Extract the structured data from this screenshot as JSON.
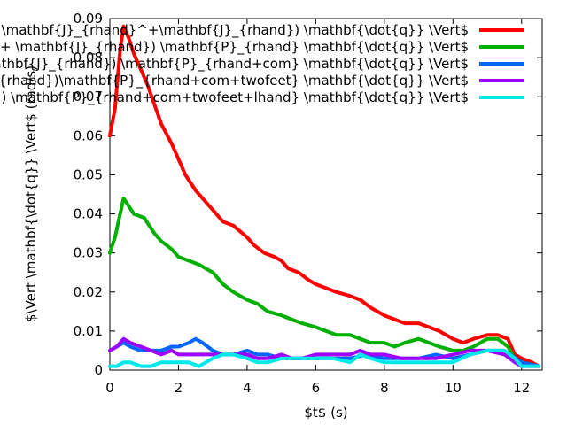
{
  "chart_data": {
    "type": "line",
    "title": "",
    "xlabel": "$t$ (s)",
    "ylabel": "$\\Vert \\mathbf{\\dot{q}} \\Vert$ (rad/s)",
    "xlim": [
      0,
      12.6
    ],
    "ylim": [
      0,
      0.09
    ],
    "xticks": [
      "0",
      "2",
      "4",
      "6",
      "8",
      "10",
      "12"
    ],
    "yticks": [
      "0",
      "0.01",
      "0.02",
      "0.03",
      "0.04",
      "0.05",
      "0.06",
      "0.07",
      "0.08",
      "0.09"
    ],
    "legend_position": "top-right",
    "series": [
      {
        "name": "$\\Vert (\\mathbf{I} - \\mathbf{J}_{rhand}^+\\mathbf{J}_{rhand}) \\mathbf{\\dot{q}} \\Vert$",
        "color": "#ff0000",
        "x": [
          0,
          0.15,
          0.3,
          0.4,
          0.55,
          0.7,
          0.9,
          1.1,
          1.3,
          1.5,
          1.8,
          2.0,
          2.2,
          2.5,
          2.8,
          3.0,
          3.3,
          3.6,
          4.0,
          4.2,
          4.5,
          4.8,
          5.0,
          5.2,
          5.5,
          5.8,
          6.0,
          6.3,
          6.6,
          7.0,
          7.3,
          7.6,
          8.0,
          8.3,
          8.6,
          9.0,
          9.3,
          9.6,
          10.0,
          10.3,
          10.6,
          11.0,
          11.3,
          11.6,
          11.8,
          12.0,
          12.3,
          12.5
        ],
        "values": [
          0.06,
          0.067,
          0.082,
          0.088,
          0.085,
          0.081,
          0.077,
          0.073,
          0.068,
          0.063,
          0.058,
          0.054,
          0.05,
          0.046,
          0.043,
          0.041,
          0.038,
          0.037,
          0.034,
          0.032,
          0.03,
          0.029,
          0.028,
          0.026,
          0.025,
          0.023,
          0.022,
          0.021,
          0.02,
          0.019,
          0.018,
          0.016,
          0.014,
          0.013,
          0.012,
          0.012,
          0.011,
          0.01,
          0.008,
          0.007,
          0.008,
          0.009,
          0.009,
          0.008,
          0.004,
          0.003,
          0.002,
          0.001
        ]
      },
      {
        "name": "$\\Vert (\\mathbf{I} - \\mathbf{J}_{rhand}^+ \\mathbf{J}_{rhand}) \\mathbf{P}_{rhand} \\mathbf{\\dot{q}} \\Vert$",
        "color": "#00b000",
        "x": [
          0,
          0.15,
          0.3,
          0.4,
          0.55,
          0.7,
          1.0,
          1.3,
          1.5,
          1.8,
          2.0,
          2.3,
          2.6,
          3.0,
          3.3,
          3.6,
          4.0,
          4.3,
          4.6,
          5.0,
          5.3,
          5.6,
          6.0,
          6.3,
          6.6,
          7.0,
          7.3,
          7.6,
          8.0,
          8.3,
          8.6,
          9.0,
          9.3,
          9.6,
          10.0,
          10.3,
          10.6,
          11.0,
          11.3,
          11.6,
          11.8,
          12.0,
          12.5
        ],
        "values": [
          0.03,
          0.034,
          0.04,
          0.044,
          0.042,
          0.04,
          0.039,
          0.035,
          0.033,
          0.031,
          0.029,
          0.028,
          0.027,
          0.025,
          0.022,
          0.02,
          0.018,
          0.017,
          0.015,
          0.014,
          0.013,
          0.012,
          0.011,
          0.01,
          0.009,
          0.009,
          0.008,
          0.007,
          0.007,
          0.006,
          0.007,
          0.008,
          0.007,
          0.006,
          0.005,
          0.005,
          0.006,
          0.008,
          0.008,
          0.006,
          0.003,
          0.002,
          0.001
        ]
      },
      {
        "name": "$\\Vert (\\mathbf{I} - \\mathbf{J}_{rhand}^+ \\mathbf{J}_{rhand}) \\mathbf{P}_{rhand+com} \\mathbf{\\dot{q}} \\Vert$",
        "color": "#0066ff",
        "x": [
          0,
          0.2,
          0.4,
          0.6,
          0.9,
          1.2,
          1.5,
          1.8,
          2.0,
          2.3,
          2.5,
          2.7,
          3.0,
          3.3,
          3.6,
          4.0,
          4.3,
          4.6,
          5.0,
          5.3,
          5.6,
          6.0,
          6.5,
          7.0,
          7.5,
          8.0,
          8.5,
          9.0,
          9.5,
          10.0,
          10.5,
          11.0,
          11.5,
          12.0,
          12.5
        ],
        "values": [
          0.005,
          0.006,
          0.007,
          0.006,
          0.005,
          0.005,
          0.005,
          0.006,
          0.006,
          0.007,
          0.008,
          0.007,
          0.005,
          0.004,
          0.004,
          0.005,
          0.004,
          0.004,
          0.003,
          0.003,
          0.003,
          0.003,
          0.003,
          0.003,
          0.004,
          0.003,
          0.003,
          0.003,
          0.004,
          0.003,
          0.004,
          0.005,
          0.005,
          0.002,
          0.001
        ]
      },
      {
        "name": "$\\Vert (\\mathbf{I} - \\mathbf{J}_{rhand}^+ \\mathbf{J}_{rhand})\\mathbf{P}_{rhand+com+twofeet} \\mathbf{\\dot{q}} \\Vert$",
        "color": "#a000ff",
        "x": [
          0,
          0.2,
          0.4,
          0.6,
          0.9,
          1.2,
          1.5,
          1.8,
          2.0,
          2.3,
          2.6,
          3.0,
          3.3,
          3.6,
          4.0,
          4.3,
          4.6,
          5.0,
          5.3,
          5.6,
          6.0,
          6.5,
          7.0,
          7.3,
          7.6,
          8.0,
          8.5,
          9.0,
          9.5,
          10.0,
          10.5,
          11.0,
          11.5,
          11.8,
          12.0,
          12.5
        ],
        "values": [
          0.005,
          0.006,
          0.008,
          0.007,
          0.006,
          0.005,
          0.004,
          0.005,
          0.004,
          0.004,
          0.004,
          0.004,
          0.004,
          0.004,
          0.004,
          0.003,
          0.003,
          0.004,
          0.003,
          0.003,
          0.004,
          0.004,
          0.004,
          0.005,
          0.004,
          0.004,
          0.003,
          0.003,
          0.003,
          0.004,
          0.005,
          0.005,
          0.004,
          0.002,
          0.001,
          0.001
        ]
      },
      {
        "name": "$\\Vert (\\mathbf{I} - \\mathbf{J}_{rhand}^+ \\mathbf{J}_{rhand}) \\mathbf{P}_{rhand+com+twofeet+lhand} \\mathbf{\\dot{q}} \\Vert$",
        "color": "#00e8e8",
        "x": [
          0,
          0.2,
          0.4,
          0.6,
          0.9,
          1.2,
          1.5,
          1.8,
          2.0,
          2.3,
          2.6,
          3.0,
          3.3,
          3.6,
          4.0,
          4.3,
          4.6,
          5.0,
          5.3,
          5.6,
          6.0,
          6.5,
          7.0,
          7.3,
          7.6,
          8.0,
          8.5,
          9.0,
          9.5,
          10.0,
          10.5,
          11.0,
          11.5,
          11.8,
          12.0,
          12.5
        ],
        "values": [
          0.001,
          0.001,
          0.002,
          0.002,
          0.001,
          0.001,
          0.002,
          0.002,
          0.002,
          0.002,
          0.001,
          0.003,
          0.004,
          0.004,
          0.003,
          0.002,
          0.002,
          0.003,
          0.003,
          0.003,
          0.003,
          0.003,
          0.002,
          0.004,
          0.003,
          0.002,
          0.002,
          0.002,
          0.002,
          0.002,
          0.004,
          0.005,
          0.005,
          0.003,
          0.001,
          0.001
        ]
      }
    ]
  }
}
